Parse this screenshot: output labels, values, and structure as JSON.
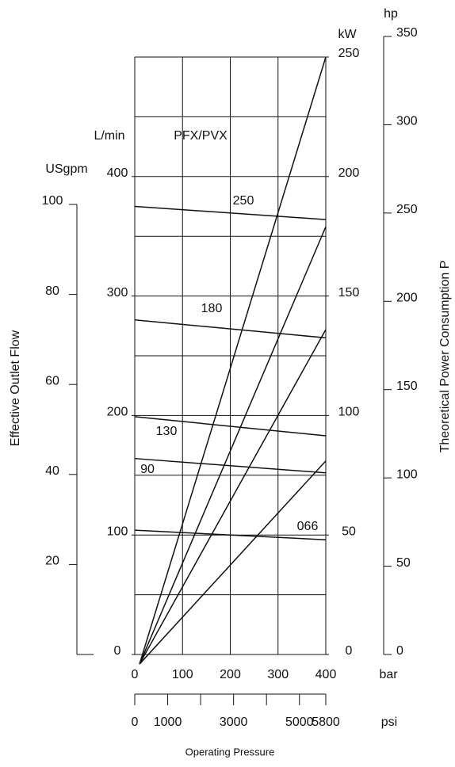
{
  "chart_data": {
    "type": "line",
    "x_unit": "bar",
    "x2_unit": "psi",
    "x_label": "Operating Pressure",
    "y_label": "Effective Outlet Flow",
    "y3_label": "Theoretical Power Consumption  P",
    "y_unit": "L/min",
    "y2_unit": "kW",
    "y3_unit": "hp",
    "y4_unit": "USgpm",
    "series_header": "PFX/PVX",
    "xlim": [
      0,
      400
    ],
    "xticks": [
      0,
      100,
      200,
      300,
      400
    ],
    "x2lim": [
      0,
      5800
    ],
    "x2ticks": [
      0,
      1000,
      3000,
      5000,
      5800
    ],
    "x2minor_ticks": [
      2000,
      4000
    ],
    "ylim": [
      0,
      500
    ],
    "yticks": [
      0,
      100,
      200,
      300,
      400
    ],
    "ygrid": [
      50,
      100,
      150,
      200,
      250,
      300,
      350,
      400,
      450,
      500
    ],
    "y2lim": [
      0,
      250
    ],
    "y2ticks": [
      0,
      50,
      100,
      150,
      200,
      250
    ],
    "y3lim": [
      0,
      350
    ],
    "y3ticks": [
      0,
      50,
      100,
      150,
      200,
      250,
      300,
      350
    ],
    "y4lim": [
      0,
      100
    ],
    "y4ticks": [
      20,
      40,
      60,
      80,
      100
    ],
    "series": [
      {
        "name": "250",
        "x": [
          0,
          400
        ],
        "values": [
          375,
          364
        ]
      },
      {
        "name": "180",
        "x": [
          0,
          400
        ],
        "values": [
          280,
          265
        ]
      },
      {
        "name": "130",
        "x": [
          0,
          400
        ],
        "values": [
          199,
          183
        ]
      },
      {
        "name": "90",
        "x": [
          0,
          400
        ],
        "values": [
          164,
          152
        ]
      },
      {
        "name": "066",
        "x": [
          0,
          400
        ],
        "values": [
          104,
          96
        ]
      }
    ],
    "power_lines": [
      {
        "axis": "y2",
        "x": [
          10,
          400
        ],
        "values": [
          -4,
          250
        ]
      },
      {
        "axis": "y2",
        "x": [
          10,
          400
        ],
        "values": [
          -4,
          179
        ]
      },
      {
        "axis": "y2",
        "x": [
          10,
          400
        ],
        "values": [
          -4,
          136
        ]
      },
      {
        "axis": "y2",
        "x": [
          10,
          400
        ],
        "values": [
          -4,
          81
        ]
      }
    ],
    "grid": true
  }
}
